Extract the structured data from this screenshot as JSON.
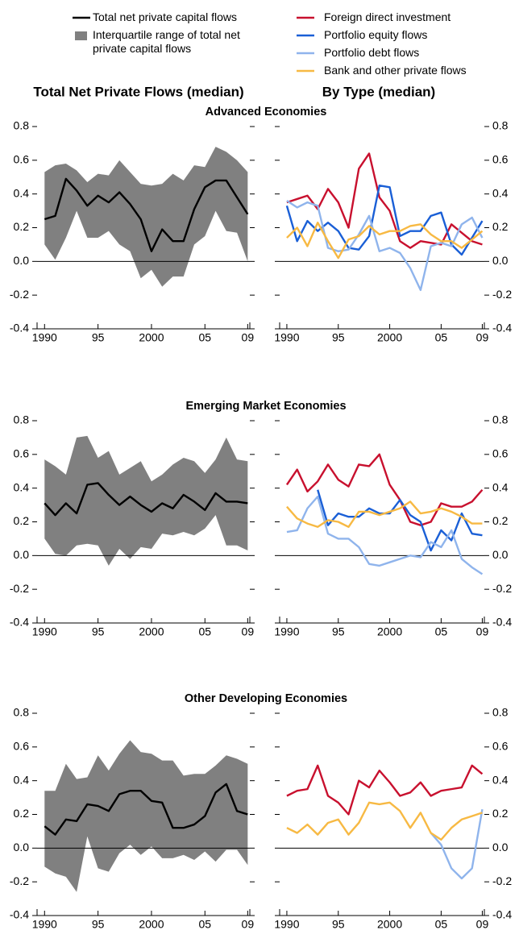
{
  "chart_data": [
    {
      "type": "line",
      "title": "Total Net Private Flows (median)",
      "subtitle": "Advanced Economies",
      "x": [
        1990,
        1991,
        1992,
        1993,
        1994,
        1995,
        1996,
        1997,
        1998,
        1999,
        2000,
        2001,
        2002,
        2003,
        2004,
        2005,
        2006,
        2007,
        2008,
        2009
      ],
      "xlim": [
        1989.3,
        2009.2
      ],
      "xticks": [
        1990,
        {
          "value": 1995,
          "label": "95"
        },
        2000,
        {
          "value": 2005,
          "label": "05"
        },
        {
          "value": 2009,
          "label": "09"
        }
      ],
      "ylim": [
        -0.4,
        0.8
      ],
      "yticks": [
        -0.4,
        -0.2,
        {
          "value": 0,
          "label": "0.0"
        },
        0.2,
        0.4,
        0.6,
        0.8
      ],
      "series": [
        {
          "name": "Total net private capital flows",
          "color": "#000000",
          "values": [
            0.25,
            0.27,
            0.49,
            0.42,
            0.33,
            0.39,
            0.35,
            0.41,
            0.34,
            0.25,
            0.06,
            0.19,
            0.12,
            0.12,
            0.31,
            0.44,
            0.48,
            0.48,
            0.38,
            0.28
          ]
        },
        {
          "name": "Interquartile range of total net private capital flows",
          "color": "#808080",
          "upper": [
            0.53,
            0.57,
            0.58,
            0.54,
            0.47,
            0.52,
            0.51,
            0.6,
            0.53,
            0.46,
            0.45,
            0.46,
            0.52,
            0.48,
            0.57,
            0.56,
            0.68,
            0.65,
            0.6,
            0.53
          ],
          "lower": [
            0.1,
            0.01,
            0.14,
            0.3,
            0.14,
            0.14,
            0.18,
            0.1,
            0.06,
            -0.1,
            -0.05,
            -0.15,
            -0.09,
            -0.09,
            0.1,
            0.15,
            0.3,
            0.18,
            0.17,
            0.0
          ]
        }
      ]
    },
    {
      "type": "line",
      "title": "By Type (median)",
      "x": [
        1990,
        1991,
        1992,
        1993,
        1994,
        1995,
        1996,
        1997,
        1998,
        1999,
        2000,
        2001,
        2002,
        2003,
        2004,
        2005,
        2006,
        2007,
        2008,
        2009
      ],
      "xlim": [
        1989.3,
        2009.2
      ],
      "xticks": [
        1990,
        {
          "value": 1995,
          "label": "95"
        },
        2000,
        {
          "value": 2005,
          "label": "05"
        },
        {
          "value": 2009,
          "label": "09"
        }
      ],
      "ylim": [
        -0.4,
        0.8
      ],
      "yticks": [
        -0.4,
        -0.2,
        {
          "value": 0,
          "label": "0.0"
        },
        0.2,
        0.4,
        0.6,
        0.8
      ],
      "series": [
        {
          "name": "Foreign direct investment",
          "color": "#c8102e",
          "values": [
            0.35,
            0.37,
            0.39,
            0.31,
            0.43,
            0.35,
            0.2,
            0.55,
            0.64,
            0.38,
            0.3,
            0.12,
            0.08,
            0.12,
            0.11,
            0.1,
            0.22,
            0.17,
            0.12,
            0.1
          ]
        },
        {
          "name": "Portfolio equity flows",
          "color": "#1a5fd6",
          "values": [
            0.33,
            0.12,
            0.24,
            0.18,
            0.23,
            0.18,
            0.08,
            0.07,
            0.15,
            0.45,
            0.44,
            0.15,
            0.18,
            0.18,
            0.27,
            0.29,
            0.1,
            0.04,
            0.14,
            0.24
          ]
        },
        {
          "name": "Portfolio debt flows",
          "color": "#8fb4ec",
          "values": [
            0.36,
            0.32,
            0.35,
            0.33,
            0.08,
            0.06,
            0.07,
            0.16,
            0.27,
            0.06,
            0.08,
            0.05,
            -0.04,
            -0.17,
            0.09,
            0.11,
            0.09,
            0.22,
            0.26,
            0.14
          ]
        },
        {
          "name": "Bank and other private flows",
          "color": "#f7b943",
          "values": [
            0.14,
            0.2,
            0.09,
            0.23,
            0.12,
            0.02,
            0.13,
            0.15,
            0.21,
            0.16,
            0.18,
            0.18,
            0.21,
            0.22,
            0.16,
            0.12,
            0.12,
            0.08,
            0.13,
            0.18
          ]
        }
      ]
    },
    {
      "type": "line",
      "subtitle": "Emerging Market Economies",
      "x": [
        1990,
        1991,
        1992,
        1993,
        1994,
        1995,
        1996,
        1997,
        1998,
        1999,
        2000,
        2001,
        2002,
        2003,
        2004,
        2005,
        2006,
        2007,
        2008,
        2009
      ],
      "xlim": [
        1989.3,
        2009.2
      ],
      "xticks": [
        1990,
        {
          "value": 1995,
          "label": "95"
        },
        2000,
        {
          "value": 2005,
          "label": "05"
        },
        {
          "value": 2009,
          "label": "09"
        }
      ],
      "ylim": [
        -0.4,
        0.8
      ],
      "yticks": [
        -0.4,
        -0.2,
        {
          "value": 0,
          "label": "0.0"
        },
        0.2,
        0.4,
        0.6,
        0.8
      ],
      "series": [
        {
          "color": "#000000",
          "values": [
            0.31,
            0.24,
            0.31,
            0.25,
            0.42,
            0.43,
            0.36,
            0.3,
            0.35,
            0.3,
            0.26,
            0.31,
            0.28,
            0.36,
            0.32,
            0.27,
            0.37,
            0.32,
            0.32,
            0.31
          ]
        },
        {
          "color": "#808080",
          "upper": [
            0.57,
            0.53,
            0.48,
            0.7,
            0.71,
            0.58,
            0.62,
            0.48,
            0.52,
            0.56,
            0.44,
            0.48,
            0.54,
            0.58,
            0.56,
            0.49,
            0.57,
            0.7,
            0.57,
            0.56
          ],
          "lower": [
            0.1,
            0.01,
            0.0,
            0.06,
            0.07,
            0.06,
            -0.06,
            0.04,
            -0.02,
            0.05,
            0.04,
            0.13,
            0.12,
            0.14,
            0.12,
            0.16,
            0.24,
            0.06,
            0.06,
            0.03
          ]
        }
      ]
    },
    {
      "type": "line",
      "x": [
        1990,
        1991,
        1992,
        1993,
        1994,
        1995,
        1996,
        1997,
        1998,
        1999,
        2000,
        2001,
        2002,
        2003,
        2004,
        2005,
        2006,
        2007,
        2008,
        2009
      ],
      "xlim": [
        1989.3,
        2009.2
      ],
      "xticks": [
        1990,
        {
          "value": 1995,
          "label": "95"
        },
        2000,
        {
          "value": 2005,
          "label": "05"
        },
        {
          "value": 2009,
          "label": "09"
        }
      ],
      "ylim": [
        -0.4,
        0.8
      ],
      "yticks": [
        -0.4,
        -0.2,
        {
          "value": 0,
          "label": "0.0"
        },
        0.2,
        0.4,
        0.6,
        0.8
      ],
      "series": [
        {
          "color": "#c8102e",
          "values": [
            0.42,
            0.51,
            0.38,
            0.44,
            0.54,
            0.45,
            0.41,
            0.54,
            0.53,
            0.6,
            0.42,
            0.33,
            0.2,
            0.18,
            0.2,
            0.31,
            0.29,
            0.29,
            0.32,
            0.39
          ]
        },
        {
          "color": "#1a5fd6",
          "values": [
            null,
            null,
            null,
            0.39,
            0.18,
            0.25,
            0.23,
            0.23,
            0.28,
            0.25,
            0.25,
            0.33,
            0.24,
            0.2,
            0.03,
            0.15,
            0.09,
            0.25,
            0.13,
            0.12
          ]
        },
        {
          "color": "#8fb4ec",
          "values": [
            0.14,
            0.15,
            0.28,
            0.35,
            0.13,
            0.1,
            0.1,
            0.05,
            -0.05,
            -0.06,
            -0.04,
            -0.02,
            0.0,
            -0.01,
            0.08,
            0.05,
            0.15,
            -0.02,
            -0.07,
            -0.11
          ]
        },
        {
          "color": "#f7b943",
          "values": [
            0.29,
            0.22,
            0.19,
            0.17,
            0.21,
            0.2,
            0.17,
            0.26,
            0.26,
            0.24,
            0.26,
            0.28,
            0.32,
            0.25,
            0.26,
            0.28,
            0.26,
            0.23,
            0.19,
            0.19
          ]
        }
      ]
    },
    {
      "type": "line",
      "subtitle": "Other Developing Economies",
      "x": [
        1990,
        1991,
        1992,
        1993,
        1994,
        1995,
        1996,
        1997,
        1998,
        1999,
        2000,
        2001,
        2002,
        2003,
        2004,
        2005,
        2006,
        2007,
        2008,
        2009
      ],
      "xlim": [
        1989.3,
        2009.2
      ],
      "xticks": [
        1990,
        {
          "value": 1995,
          "label": "95"
        },
        2000,
        {
          "value": 2005,
          "label": "05"
        },
        {
          "value": 2009,
          "label": "09"
        }
      ],
      "ylim": [
        -0.4,
        0.8
      ],
      "yticks": [
        -0.4,
        -0.2,
        {
          "value": 0,
          "label": "0.0"
        },
        0.2,
        0.4,
        0.6,
        0.8
      ],
      "series": [
        {
          "color": "#000000",
          "values": [
            0.13,
            0.08,
            0.17,
            0.16,
            0.26,
            0.25,
            0.22,
            0.32,
            0.34,
            0.34,
            0.28,
            0.27,
            0.12,
            0.12,
            0.14,
            0.19,
            0.33,
            0.38,
            0.22,
            0.2
          ]
        },
        {
          "color": "#808080",
          "upper": [
            0.34,
            0.34,
            0.5,
            0.41,
            0.42,
            0.55,
            0.46,
            0.56,
            0.64,
            0.57,
            0.56,
            0.52,
            0.52,
            0.43,
            0.44,
            0.44,
            0.49,
            0.55,
            0.53,
            0.5
          ],
          "lower": [
            -0.11,
            -0.15,
            -0.17,
            -0.26,
            0.07,
            -0.12,
            -0.14,
            -0.03,
            0.02,
            -0.04,
            0.01,
            -0.06,
            -0.06,
            -0.04,
            -0.07,
            -0.02,
            -0.08,
            -0.01,
            -0.01,
            -0.1
          ]
        }
      ]
    },
    {
      "type": "line",
      "x": [
        1990,
        1991,
        1992,
        1993,
        1994,
        1995,
        1996,
        1997,
        1998,
        1999,
        2000,
        2001,
        2002,
        2003,
        2004,
        2005,
        2006,
        2007,
        2008,
        2009
      ],
      "xlim": [
        1989.3,
        2009.2
      ],
      "xticks": [
        1990,
        {
          "value": 1995,
          "label": "95"
        },
        2000,
        {
          "value": 2005,
          "label": "05"
        },
        {
          "value": 2009,
          "label": "09"
        }
      ],
      "ylim": [
        -0.4,
        0.8
      ],
      "yticks": [
        -0.4,
        -0.2,
        {
          "value": 0,
          "label": "0.0"
        },
        0.2,
        0.4,
        0.6,
        0.8
      ],
      "series": [
        {
          "color": "#c8102e",
          "values": [
            0.31,
            0.34,
            0.35,
            0.49,
            0.31,
            0.27,
            0.2,
            0.4,
            0.36,
            0.46,
            0.39,
            0.31,
            0.33,
            0.39,
            0.31,
            0.34,
            0.35,
            0.36,
            0.49,
            0.44
          ]
        },
        {
          "color": "#8fb4ec",
          "values": [
            null,
            null,
            null,
            null,
            null,
            null,
            null,
            null,
            null,
            null,
            null,
            null,
            null,
            null,
            0.09,
            0.02,
            -0.12,
            -0.18,
            -0.12,
            0.23
          ]
        },
        {
          "color": "#f7b943",
          "values": [
            0.12,
            0.09,
            0.14,
            0.08,
            0.15,
            0.17,
            0.08,
            0.15,
            0.27,
            0.26,
            0.27,
            0.22,
            0.12,
            0.21,
            0.09,
            0.05,
            0.12,
            0.17,
            0.19,
            0.21
          ]
        }
      ]
    }
  ]
}
